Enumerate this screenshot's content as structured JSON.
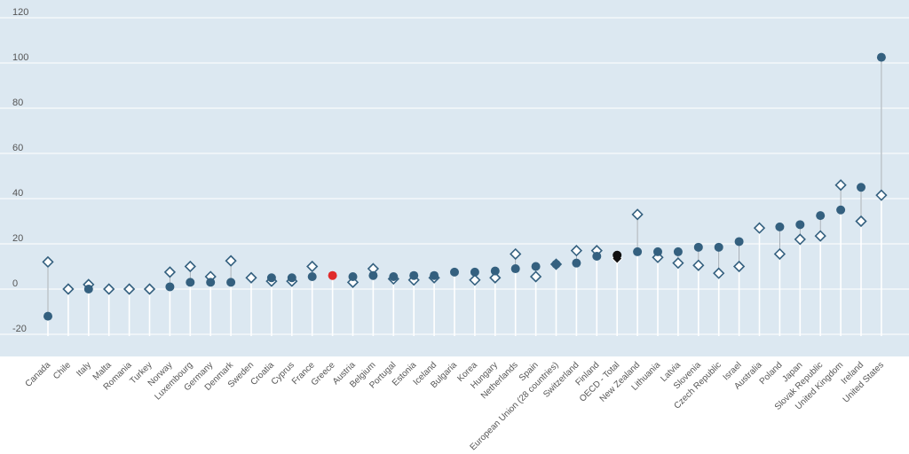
{
  "chart_data": {
    "type": "scatter",
    "title": "",
    "xlabel": "",
    "ylabel": "",
    "ylim": [
      -30,
      125
    ],
    "yticks": [
      -20,
      0,
      20,
      40,
      60,
      80,
      100,
      120
    ],
    "grid": true,
    "highlight_category": "Greece",
    "colors": {
      "plot_bg": "#dce8f1",
      "grid": "#ffffff",
      "circle": "#34607f",
      "diamond": "#34607f",
      "highlight": "#e02b2b",
      "oecd": "#111111",
      "tick_text": "#555555"
    },
    "categories": [
      "Canada",
      "Chile",
      "Italy",
      "Malta",
      "Romania",
      "Turkey",
      "Norway",
      "Luxembourg",
      "Germany",
      "Denmark",
      "Sweden",
      "Croatia",
      "Cyprus",
      "France",
      "Greece",
      "Austria",
      "Belgium",
      "Portugal",
      "Estonia",
      "Iceland",
      "Bulgaria",
      "Korea",
      "Hungary",
      "Netherlands",
      "Spain",
      "European Union (28 countries)",
      "Switzerland",
      "Finland",
      "OECD - Total",
      "New Zealand",
      "Lithuania",
      "Latvia",
      "Slovenia",
      "Czech Republic",
      "Israel",
      "Australia",
      "Poland",
      "Japan",
      "Slovak Republic",
      "United Kingdom",
      "Ireland",
      "United States"
    ],
    "series": [
      {
        "marker": "circle",
        "values": [
          -12,
          null,
          0,
          null,
          null,
          null,
          1,
          3,
          3,
          3,
          null,
          5,
          5,
          5.5,
          6,
          5.5,
          6,
          5.5,
          6,
          6,
          7.5,
          7.5,
          8,
          9,
          10,
          11,
          11.5,
          14.5,
          15,
          16.5,
          16.5,
          16.5,
          18.5,
          18.5,
          21,
          null,
          27.5,
          28.5,
          32.5,
          35,
          45,
          102.5
        ]
      },
      {
        "marker": "diamond",
        "values": [
          12,
          0,
          2,
          0,
          0,
          0,
          7.5,
          10,
          5.5,
          12.5,
          5,
          3.5,
          3.5,
          10,
          null,
          3,
          9,
          4.5,
          4,
          5,
          null,
          4,
          5,
          15.5,
          5.5,
          11,
          17,
          17,
          13.5,
          33,
          14,
          11.5,
          10.5,
          7,
          10,
          27,
          15.5,
          22,
          23.5,
          46,
          30,
          41.5
        ]
      }
    ]
  }
}
